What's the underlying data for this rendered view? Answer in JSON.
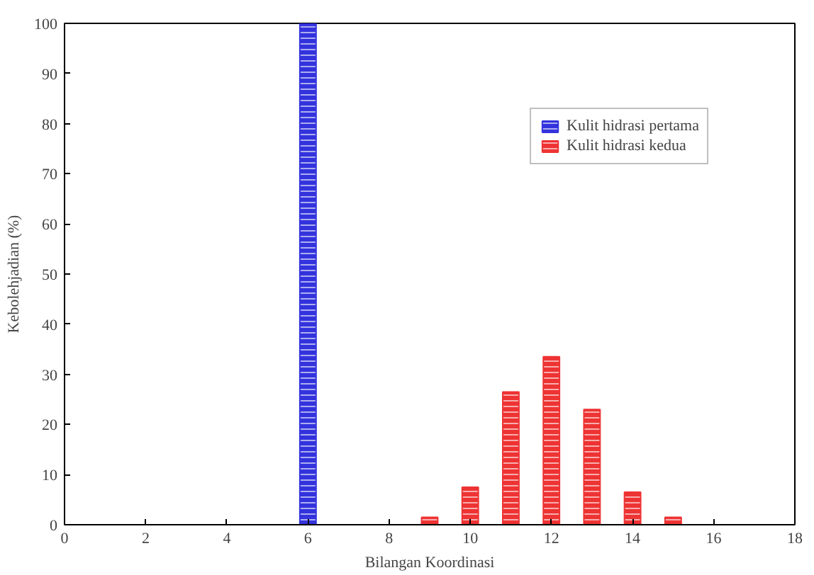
{
  "chart_data": {
    "type": "bar",
    "xlabel": "Bilangan Koordinasi",
    "ylabel": "Kebolehjadian (%)",
    "series": [
      {
        "name": "Kulit hidrasi pertama",
        "color": "#3333dd",
        "x": [
          6
        ],
        "values": [
          100
        ]
      },
      {
        "name": "Kulit hidrasi kedua",
        "color": "#ee3333",
        "x": [
          9,
          10,
          11,
          12,
          13,
          14,
          15
        ],
        "values": [
          1.5,
          7.5,
          26.5,
          33.5,
          23,
          6.5,
          1.5
        ]
      }
    ],
    "xlim": [
      0,
      18
    ],
    "xticks": [
      0,
      2,
      4,
      6,
      8,
      10,
      12,
      14,
      16,
      18
    ],
    "ylim": [
      0,
      100
    ],
    "yticks": [
      0,
      10,
      20,
      30,
      40,
      50,
      60,
      70,
      80,
      90,
      100
    ],
    "grid": false,
    "legend": "top right"
  }
}
